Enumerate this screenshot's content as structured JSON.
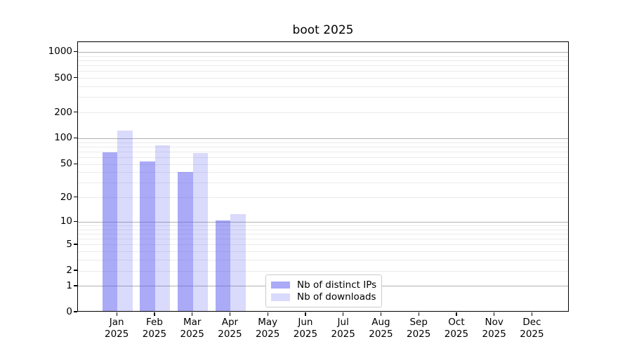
{
  "chart_data": {
    "type": "bar",
    "title": "boot 2025",
    "categories": [
      "Jan 2025",
      "Feb 2025",
      "Mar 2025",
      "Apr 2025",
      "May 2025",
      "Jun 2025",
      "Jul 2025",
      "Aug 2025",
      "Sep 2025",
      "Oct 2025",
      "Nov 2025",
      "Dec 2025"
    ],
    "series": [
      {
        "name": "Nb of distinct IPs",
        "color": "rgba(85,85,240,0.5)",
        "values": [
          67,
          52,
          39,
          10,
          0,
          0,
          0,
          0,
          0,
          0,
          0,
          0
        ]
      },
      {
        "name": "Nb of downloads",
        "color": "rgba(85,85,240,0.22)",
        "values": [
          120,
          80,
          65,
          12,
          0,
          0,
          0,
          0,
          0,
          0,
          0,
          0
        ]
      }
    ],
    "yscale": "log1p",
    "ylim": [
      0,
      1310
    ],
    "yticks": [
      0,
      1,
      2,
      5,
      10,
      20,
      50,
      100,
      200,
      500,
      1000
    ],
    "grid": {
      "major_ticks": [
        1,
        10,
        100,
        1000
      ],
      "minor_ticks": [
        2,
        3,
        4,
        5,
        6,
        7,
        8,
        9,
        20,
        30,
        40,
        50,
        60,
        70,
        80,
        90,
        200,
        300,
        400,
        500,
        600,
        700,
        800,
        900
      ],
      "major_color": "#b0b0b0",
      "minor_color": "#ebebeb"
    },
    "legend": {
      "position": "lower center",
      "border_color": "#cccccc"
    },
    "colors": {
      "spine": "#000000",
      "text": "#000000",
      "background": "#ffffff"
    }
  }
}
